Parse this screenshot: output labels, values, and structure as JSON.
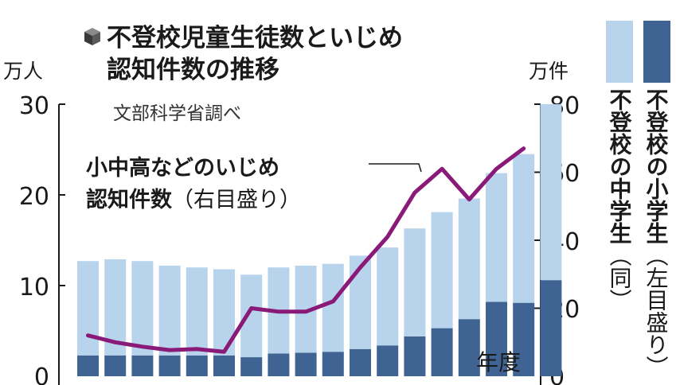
{
  "title_line1": "不登校児童生徒数といじめ",
  "title_line2": "認知件数の推移",
  "source": "文部科学省調べ",
  "annotation": {
    "line1": "小中高などのいじめ",
    "line2_main": "認知件数",
    "line2_paren": "（右目盛り）"
  },
  "legend": {
    "elementary_main": "不登校の小学生",
    "elementary_paren": "（左目盛り）",
    "junior_main": "不登校の中学生",
    "junior_paren": "（同）"
  },
  "colors": {
    "elementary": "#b8d4ec",
    "junior": "#3f6494",
    "bullying": "#8a1a78"
  },
  "chart_data": {
    "type": "bar",
    "xlabel": "年度",
    "left_axis": {
      "unit": "万人",
      "ylim": [
        0,
        30
      ],
      "ticks": [
        "0",
        "10",
        "20",
        "30"
      ]
    },
    "right_axis": {
      "unit": "万件",
      "ylim": [
        0,
        80
      ],
      "ticks": [
        "0",
        "20",
        "40",
        "60",
        "80"
      ]
    },
    "stacked": true,
    "series": [
      {
        "name": "不登校の小学生",
        "axis": "left",
        "values": [
          10.4,
          10.6,
          10.4,
          9.9,
          9.7,
          9.5,
          9.1,
          9.5,
          9.6,
          9.7,
          10.3,
          10.8,
          11.9,
          12.8,
          13.3,
          14.2,
          16.4,
          19.4
        ]
      },
      {
        "name": "不登校の中学生",
        "axis": "left",
        "values": [
          2.3,
          2.3,
          2.3,
          2.3,
          2.3,
          2.3,
          2.1,
          2.5,
          2.6,
          2.7,
          3.0,
          3.4,
          4.4,
          5.3,
          6.3,
          8.2,
          8.1,
          10.6
        ]
      },
      {
        "name": "小中高などのいじめ認知件数",
        "axis": "right",
        "type": "line",
        "values": [
          12,
          10,
          8.7,
          7.7,
          8,
          7.2,
          20,
          19,
          19,
          22,
          32,
          41,
          54,
          61,
          52,
          61,
          67
        ]
      }
    ]
  }
}
